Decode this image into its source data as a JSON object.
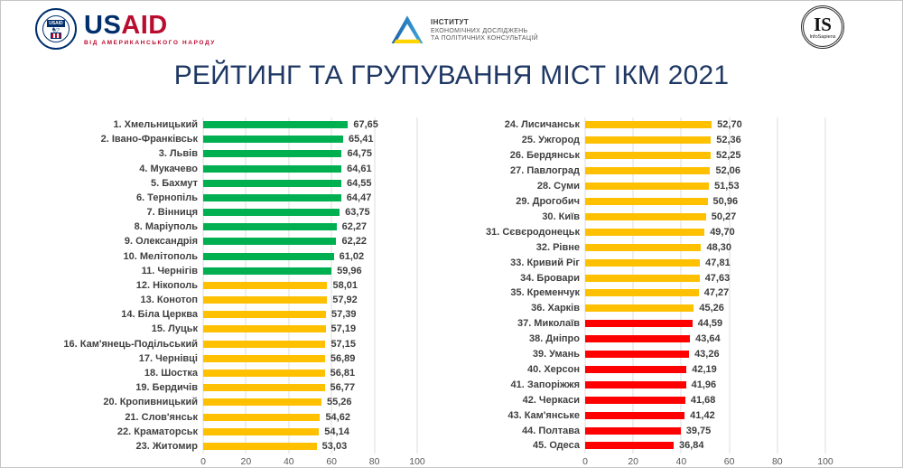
{
  "header": {
    "usaid": {
      "wordmark_us": "US",
      "wordmark_aid": "AID",
      "seal_text": "USAID",
      "tagline": "ВІД АМЕРИКАНСЬКОГО НАРОДУ"
    },
    "ier": {
      "line1": "ІНСТИТУТ",
      "line2": "ЕКОНОМІЧНИХ ДОСЛІДЖЕНЬ",
      "line3": "ТА ПОЛІТИЧНИХ КОНСУЛЬТАЦІЙ"
    },
    "infosapiens": {
      "monogram": "IS",
      "name": "InfoSapiens"
    }
  },
  "title": "РЕЙТИНГ ТА ГРУПУВАННЯ МІСТ ІКМ 2021",
  "colors": {
    "green": "#00B050",
    "yellow": "#FFC000",
    "red": "#FF0000",
    "title_blue": "#1F3864"
  },
  "chart_data": [
    {
      "type": "bar",
      "orientation": "horizontal",
      "xlim": [
        0,
        100
      ],
      "x_ticks": [
        0,
        20,
        40,
        60,
        80,
        100
      ],
      "grid": true,
      "value_format": "comma-decimal",
      "rows": [
        {
          "rank": 1,
          "city": "Хмельницький",
          "value": 67.65,
          "value_label": "67,65",
          "group": "green"
        },
        {
          "rank": 2,
          "city": "Івано-Франківськ",
          "value": 65.41,
          "value_label": "65,41",
          "group": "green"
        },
        {
          "rank": 3,
          "city": "Львів",
          "value": 64.75,
          "value_label": "64,75",
          "group": "green"
        },
        {
          "rank": 4,
          "city": "Мукачево",
          "value": 64.61,
          "value_label": "64,61",
          "group": "green"
        },
        {
          "rank": 5,
          "city": "Бахмут",
          "value": 64.55,
          "value_label": "64,55",
          "group": "green"
        },
        {
          "rank": 6,
          "city": "Тернопіль",
          "value": 64.47,
          "value_label": "64,47",
          "group": "green"
        },
        {
          "rank": 7,
          "city": "Вінниця",
          "value": 63.75,
          "value_label": "63,75",
          "group": "green"
        },
        {
          "rank": 8,
          "city": "Маріуполь",
          "value": 62.27,
          "value_label": "62,27",
          "group": "green"
        },
        {
          "rank": 9,
          "city": "Олександрія",
          "value": 62.22,
          "value_label": "62,22",
          "group": "green"
        },
        {
          "rank": 10,
          "city": "Мелітополь",
          "value": 61.02,
          "value_label": "61,02",
          "group": "green"
        },
        {
          "rank": 11,
          "city": "Чернігів",
          "value": 59.96,
          "value_label": "59,96",
          "group": "green"
        },
        {
          "rank": 12,
          "city": "Нікополь",
          "value": 58.01,
          "value_label": "58,01",
          "group": "yellow"
        },
        {
          "rank": 13,
          "city": "Конотоп",
          "value": 57.92,
          "value_label": "57,92",
          "group": "yellow"
        },
        {
          "rank": 14,
          "city": "Біла Церква",
          "value": 57.39,
          "value_label": "57,39",
          "group": "yellow"
        },
        {
          "rank": 15,
          "city": "Луцьк",
          "value": 57.19,
          "value_label": "57,19",
          "group": "yellow"
        },
        {
          "rank": 16,
          "city": "Кам'янець-Подільський",
          "value": 57.15,
          "value_label": "57,15",
          "group": "yellow"
        },
        {
          "rank": 17,
          "city": "Чернівці",
          "value": 56.89,
          "value_label": "56,89",
          "group": "yellow"
        },
        {
          "rank": 18,
          "city": "Шостка",
          "value": 56.81,
          "value_label": "56,81",
          "group": "yellow"
        },
        {
          "rank": 19,
          "city": "Бердичів",
          "value": 56.77,
          "value_label": "56,77",
          "group": "yellow"
        },
        {
          "rank": 20,
          "city": "Кропивницький",
          "value": 55.26,
          "value_label": "55,26",
          "group": "yellow"
        },
        {
          "rank": 21,
          "city": "Слов'янськ",
          "value": 54.62,
          "value_label": "54,62",
          "group": "yellow"
        },
        {
          "rank": 22,
          "city": "Краматорськ",
          "value": 54.14,
          "value_label": "54,14",
          "group": "yellow"
        },
        {
          "rank": 23,
          "city": "Житомир",
          "value": 53.03,
          "value_label": "53,03",
          "group": "yellow"
        }
      ]
    },
    {
      "type": "bar",
      "orientation": "horizontal",
      "xlim": [
        0,
        100
      ],
      "x_ticks": [
        0,
        20,
        40,
        60,
        80,
        100
      ],
      "grid": true,
      "value_format": "comma-decimal",
      "rows": [
        {
          "rank": 24,
          "city": "Лисичанськ",
          "value": 52.7,
          "value_label": "52,70",
          "group": "yellow"
        },
        {
          "rank": 25,
          "city": "Ужгород",
          "value": 52.36,
          "value_label": "52,36",
          "group": "yellow"
        },
        {
          "rank": 26,
          "city": "Бердянськ",
          "value": 52.25,
          "value_label": "52,25",
          "group": "yellow"
        },
        {
          "rank": 27,
          "city": "Павлоград",
          "value": 52.06,
          "value_label": "52,06",
          "group": "yellow"
        },
        {
          "rank": 28,
          "city": "Суми",
          "value": 51.53,
          "value_label": "51,53",
          "group": "yellow"
        },
        {
          "rank": 29,
          "city": "Дрогобич",
          "value": 50.96,
          "value_label": "50,96",
          "group": "yellow"
        },
        {
          "rank": 30,
          "city": "Київ",
          "value": 50.27,
          "value_label": "50,27",
          "group": "yellow"
        },
        {
          "rank": 31,
          "city": "Сєвєродонецьк",
          "value": 49.7,
          "value_label": "49,70",
          "group": "yellow"
        },
        {
          "rank": 32,
          "city": "Рівне",
          "value": 48.3,
          "value_label": "48,30",
          "group": "yellow"
        },
        {
          "rank": 33,
          "city": "Кривий Ріг",
          "value": 47.81,
          "value_label": "47,81",
          "group": "yellow"
        },
        {
          "rank": 34,
          "city": "Бровари",
          "value": 47.63,
          "value_label": "47,63",
          "group": "yellow"
        },
        {
          "rank": 35,
          "city": "Кременчук",
          "value": 47.27,
          "value_label": "47,27",
          "group": "yellow"
        },
        {
          "rank": 36,
          "city": "Харків",
          "value": 45.26,
          "value_label": "45,26",
          "group": "yellow"
        },
        {
          "rank": 37,
          "city": "Миколаїв",
          "value": 44.59,
          "value_label": "44,59",
          "group": "red"
        },
        {
          "rank": 38,
          "city": "Дніпро",
          "value": 43.64,
          "value_label": "43,64",
          "group": "red"
        },
        {
          "rank": 39,
          "city": "Умань",
          "value": 43.26,
          "value_label": "43,26",
          "group": "red"
        },
        {
          "rank": 40,
          "city": "Херсон",
          "value": 42.19,
          "value_label": "42,19",
          "group": "red"
        },
        {
          "rank": 41,
          "city": "Запоріжжя",
          "value": 41.96,
          "value_label": "41,96",
          "group": "red"
        },
        {
          "rank": 42,
          "city": "Черкаси",
          "value": 41.68,
          "value_label": "41,68",
          "group": "red"
        },
        {
          "rank": 43,
          "city": "Кам'янське",
          "value": 41.42,
          "value_label": "41,42",
          "group": "red"
        },
        {
          "rank": 44,
          "city": "Полтава",
          "value": 39.75,
          "value_label": "39,75",
          "group": "red"
        },
        {
          "rank": 45,
          "city": "Одеса",
          "value": 36.84,
          "value_label": "36,84",
          "group": "red"
        }
      ]
    }
  ]
}
